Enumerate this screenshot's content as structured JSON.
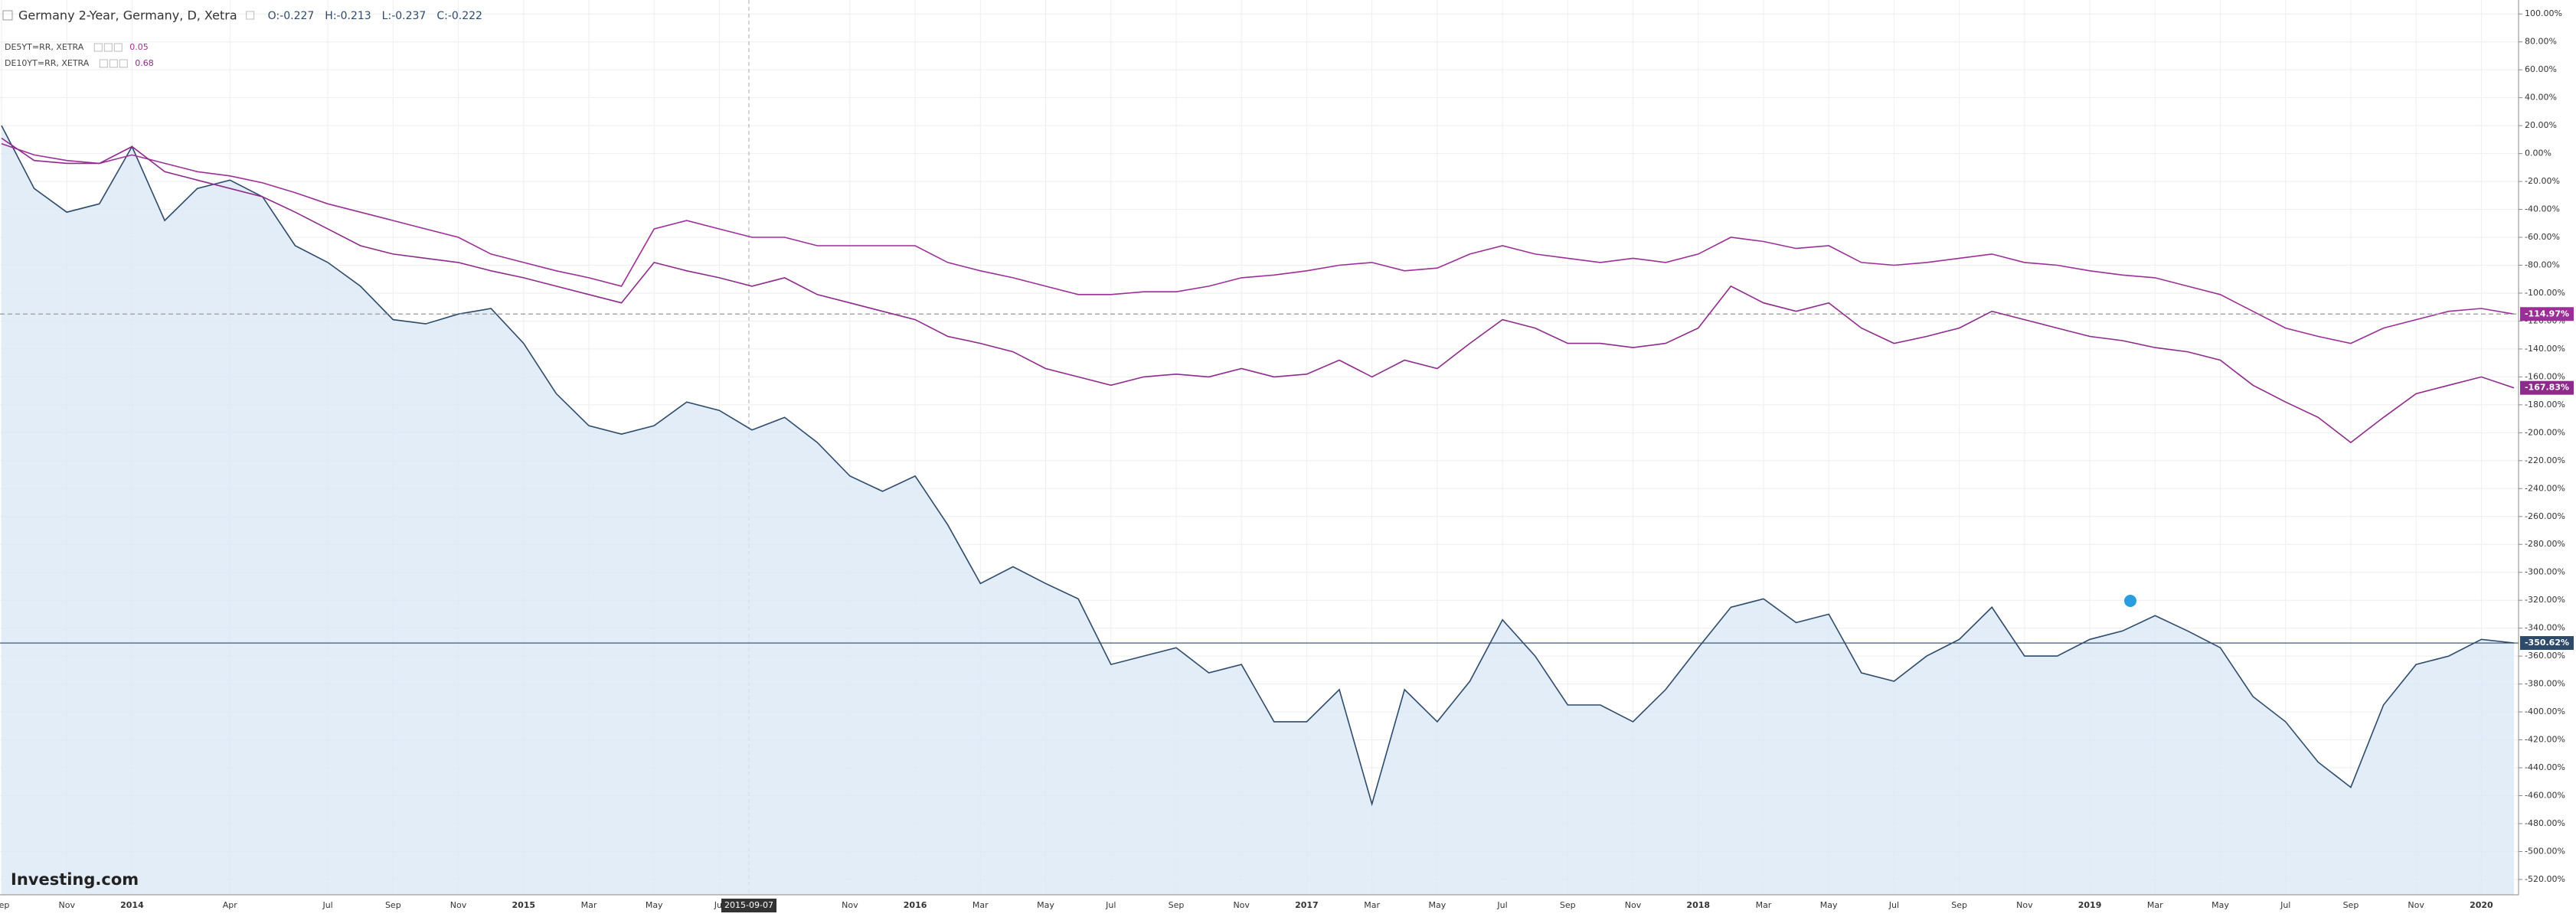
{
  "chart_data": {
    "type": "line",
    "title": "Germany 2-Year, Germany, D, Xetra",
    "ohlc_labels": [
      "O:-0.227",
      "H:-0.213",
      "L:-0.237",
      "C:-0.222"
    ],
    "crosshair_label": "2015-09-07",
    "watermark": "Investing.com",
    "categories": [
      "Sep",
      null,
      "Nov",
      null,
      "2014",
      null,
      null,
      "Apr",
      null,
      null,
      "Jul",
      null,
      "Sep",
      null,
      "Nov",
      null,
      "2015",
      null,
      "Mar",
      null,
      "May",
      null,
      "Jul",
      null,
      null,
      null,
      "Nov",
      null,
      "2016",
      null,
      "Mar",
      null,
      "May",
      null,
      "Jul",
      null,
      "Sep",
      null,
      "Nov",
      null,
      "2017",
      null,
      "Mar",
      null,
      "May",
      null,
      "Jul",
      null,
      "Sep",
      null,
      "Nov",
      null,
      "2018",
      null,
      "Mar",
      null,
      "May",
      null,
      "Jul",
      null,
      "Sep",
      null,
      "Nov",
      null,
      "2019",
      null,
      "Mar",
      null,
      "May",
      null,
      "Jul",
      null,
      "Sep",
      null,
      "Nov",
      null,
      "2020",
      null
    ],
    "series": [
      {
        "name": "Germany 2-Year, Germany, D, Xetra",
        "color": "#2d4a6b",
        "fill": "#dce9f6",
        "price_line": "solid",
        "last_value_label": "-350.62%",
        "values": [
          20,
          -25,
          -42,
          -36,
          5,
          -48,
          -25,
          -19,
          -31,
          -66,
          -78,
          -95,
          -119,
          -122,
          -115,
          -111,
          -136,
          -172,
          -195,
          -201,
          -195,
          -178,
          -184,
          -198,
          -189,
          -207,
          -231,
          -242,
          -231,
          -266,
          -308,
          -296,
          -308,
          -319,
          -366,
          -360,
          -354,
          -372,
          -366,
          -407,
          -407,
          -384,
          -466,
          -384,
          -407,
          -378,
          -334,
          -360,
          -395,
          -395,
          -407,
          -384,
          -354,
          -325,
          -319,
          -336,
          -330,
          -372,
          -378,
          -360,
          -348,
          -325,
          -360,
          -360,
          -348,
          -342,
          -331,
          -342,
          -354,
          -389,
          -407,
          -436,
          -454,
          -395,
          -366,
          -360,
          -348,
          -350.62
        ]
      },
      {
        "name": "DE5YT=RR, XETRA",
        "legend_value": "0.05",
        "color": "#9c2f97",
        "price_line": "dashed",
        "last_value_label": "-114.97%",
        "values": [
          7,
          -1,
          -5,
          -7,
          -1,
          -7,
          -13,
          -16,
          -21,
          -28,
          -36,
          -42,
          -48,
          -54,
          -60,
          -72,
          -78,
          -84,
          -89,
          -95,
          -54,
          -48,
          -54,
          -60,
          -60,
          -66,
          -66,
          -66,
          -66,
          -78,
          -84,
          -89,
          -95,
          -101,
          -101,
          -99,
          -99,
          -95,
          -89,
          -87,
          -84,
          -80,
          -78,
          -84,
          -82,
          -72,
          -66,
          -72,
          -75,
          -78,
          -75,
          -78,
          -72,
          -60,
          -63,
          -68,
          -66,
          -78,
          -80,
          -78,
          -75,
          -72,
          -78,
          -80,
          -84,
          -87,
          -89,
          -95,
          -101,
          -113,
          -125,
          -131,
          -136,
          -125,
          -119,
          -113,
          -111,
          -114.97
        ]
      },
      {
        "name": "DE10YT=RR, XETRA",
        "legend_value": "0.68",
        "color": "#8e2a8c",
        "last_value_label": "-167.83%",
        "values": [
          11,
          -5,
          -7,
          -7,
          5,
          -13,
          -19,
          -25,
          -31,
          -42,
          -54,
          -66,
          -72,
          -75,
          -78,
          -84,
          -89,
          -95,
          -101,
          -107,
          -78,
          -84,
          -89,
          -95,
          -89,
          -101,
          -107,
          -113,
          -119,
          -131,
          -136,
          -142,
          -154,
          -160,
          -166,
          -160,
          -158,
          -160,
          -154,
          -160,
          -158,
          -148,
          -160,
          -148,
          -154,
          -136,
          -119,
          -125,
          -136,
          -136,
          -139,
          -136,
          -125,
          -95,
          -107,
          -113,
          -107,
          -125,
          -136,
          -131,
          -125,
          -113,
          -119,
          -125,
          -131,
          -134,
          -139,
          -142,
          -148,
          -166,
          -178,
          -189,
          -207,
          -189,
          -172,
          -166,
          -160,
          -167.83
        ]
      }
    ],
    "ylim": [
      -531,
      110
    ],
    "yticks": [
      {
        "value": 100,
        "label": "100.00%"
      },
      {
        "value": 80,
        "label": "80.00%"
      },
      {
        "value": 60,
        "label": "60.00%"
      },
      {
        "value": 40,
        "label": "40.00%"
      },
      {
        "value": 20,
        "label": "20.00%"
      },
      {
        "value": 0,
        "label": "0.00%"
      },
      {
        "value": -20,
        "label": "-20.00%"
      },
      {
        "value": -40,
        "label": "-40.00%"
      },
      {
        "value": -60,
        "label": "-60.00%"
      },
      {
        "value": -80,
        "label": "-80.00%"
      },
      {
        "value": -100,
        "label": "-100.00%"
      },
      {
        "value": -120,
        "label": "-120.00%"
      },
      {
        "value": -140,
        "label": "-140.00%"
      },
      {
        "value": -160,
        "label": "-160.00%"
      },
      {
        "value": -180,
        "label": "-180.00%"
      },
      {
        "value": -200,
        "label": "-200.00%"
      },
      {
        "value": -220,
        "label": "-220.00%"
      },
      {
        "value": -240,
        "label": "-240.00%"
      },
      {
        "value": -260,
        "label": "-260.00%"
      },
      {
        "value": -280,
        "label": "-280.00%"
      },
      {
        "value": -300,
        "label": "-300.00%"
      },
      {
        "value": -320,
        "label": "-320.00%"
      },
      {
        "value": -340,
        "label": "-340.00%"
      },
      {
        "value": -360,
        "label": "-360.00%"
      },
      {
        "value": -380,
        "label": "-380.00%"
      },
      {
        "value": -400,
        "label": "-400.00%"
      },
      {
        "value": -420,
        "label": "-420.00%"
      },
      {
        "value": -440,
        "label": "-440.00%"
      },
      {
        "value": -460,
        "label": "-460.00%"
      },
      {
        "value": -480,
        "label": "-480.00%"
      },
      {
        "value": -500,
        "label": "-500.00%"
      },
      {
        "value": -520,
        "label": "-520.00%"
      }
    ],
    "grid": true
  }
}
